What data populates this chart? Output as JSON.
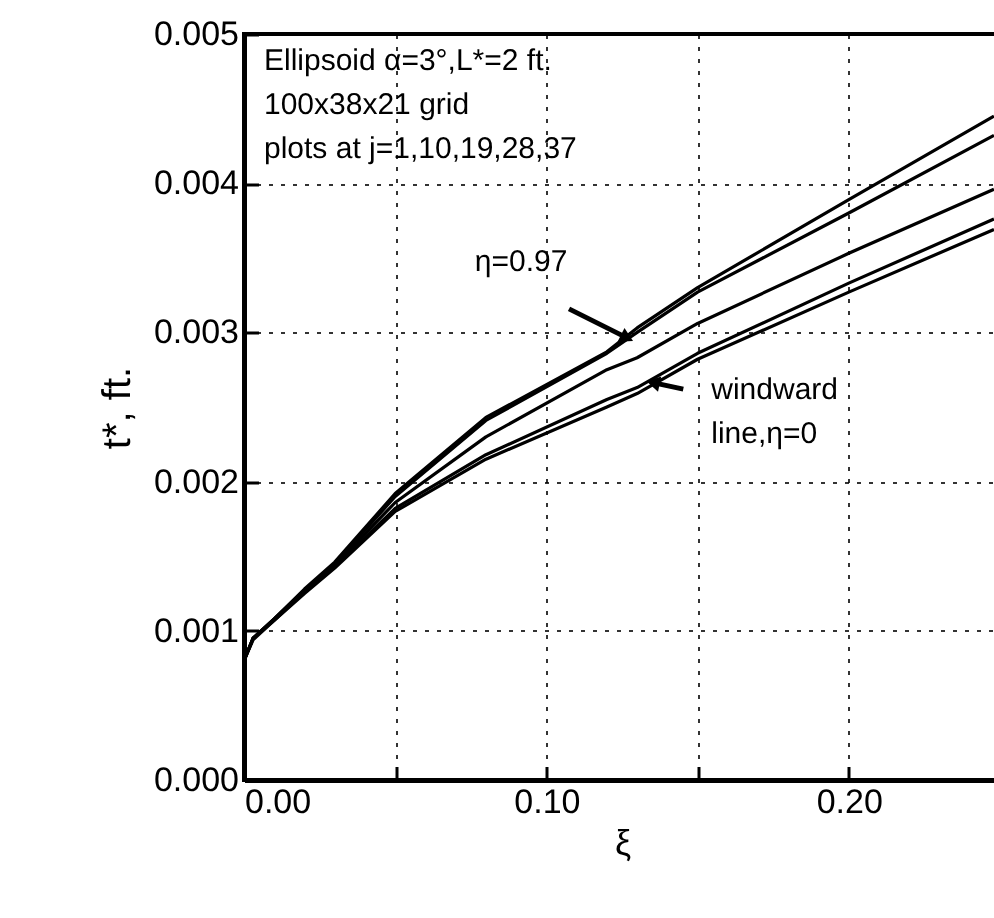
{
  "chart_data": {
    "type": "line",
    "xlabel": "ξ",
    "ylabel": "t*, ft.",
    "xlim": [
      0,
      0.25
    ],
    "xticks": [
      {
        "value": 0,
        "label": "0.00"
      },
      {
        "value": 0.05,
        "label": null
      },
      {
        "value": 0.1,
        "label": "0.10"
      },
      {
        "value": 0.15,
        "label": null
      },
      {
        "value": 0.2,
        "label": "0.20"
      }
    ],
    "ylim": [
      0,
      0.005
    ],
    "yticks": [
      {
        "value": 0,
        "label": "0.000"
      },
      {
        "value": 0.001,
        "label": "0.001"
      },
      {
        "value": 0.002,
        "label": "0.002"
      },
      {
        "value": 0.003,
        "label": "0.003"
      },
      {
        "value": 0.004,
        "label": "0.004"
      },
      {
        "value": 0.005,
        "label": "0.005"
      }
    ],
    "grid": true,
    "x": [
      0,
      0.003,
      0.01,
      0.02,
      0.03,
      0.05,
      0.08,
      0.12,
      0.13,
      0.15,
      0.2,
      0.248
    ],
    "series": [
      {
        "color": "#000000",
        "values": [
          0.0008,
          0.00095,
          0.00108,
          0.00128,
          0.00146,
          0.00192,
          0.00243,
          0.00287,
          0.00303,
          0.0033,
          0.00389,
          0.00445
        ]
      },
      {
        "color": "#000000",
        "values": [
          0.0008,
          0.00095,
          0.00108,
          0.00127,
          0.00145,
          0.0019,
          0.00241,
          0.00286,
          0.003,
          0.00327,
          0.0038,
          0.00432
        ]
      },
      {
        "color": "#000000",
        "values": [
          0.0008,
          0.00095,
          0.00108,
          0.00127,
          0.00144,
          0.00186,
          0.0023,
          0.00275,
          0.00283,
          0.00306,
          0.00353,
          0.00396
        ]
      },
      {
        "color": "#000000",
        "values": [
          0.0008,
          0.00095,
          0.00107,
          0.00126,
          0.00143,
          0.00182,
          0.00218,
          0.00255,
          0.00263,
          0.00286,
          0.00333,
          0.00376
        ]
      },
      {
        "color": "#000000",
        "values": [
          0.0008,
          0.00094,
          0.00107,
          0.00125,
          0.00142,
          0.0018,
          0.00215,
          0.0025,
          0.00259,
          0.00282,
          0.00327,
          0.00369
        ]
      }
    ],
    "annotations": [
      "Ellipsoid α=3°,L*=2 ft.",
      "100x38x21 grid",
      "plots at j=1,10,19,28,37",
      {
        "text": "η=0.97",
        "x": 0.126,
        "y": 0.00297
      },
      {
        "text": "windward line,η=0",
        "x": 0.136,
        "y": 0.00266
      }
    ]
  }
}
